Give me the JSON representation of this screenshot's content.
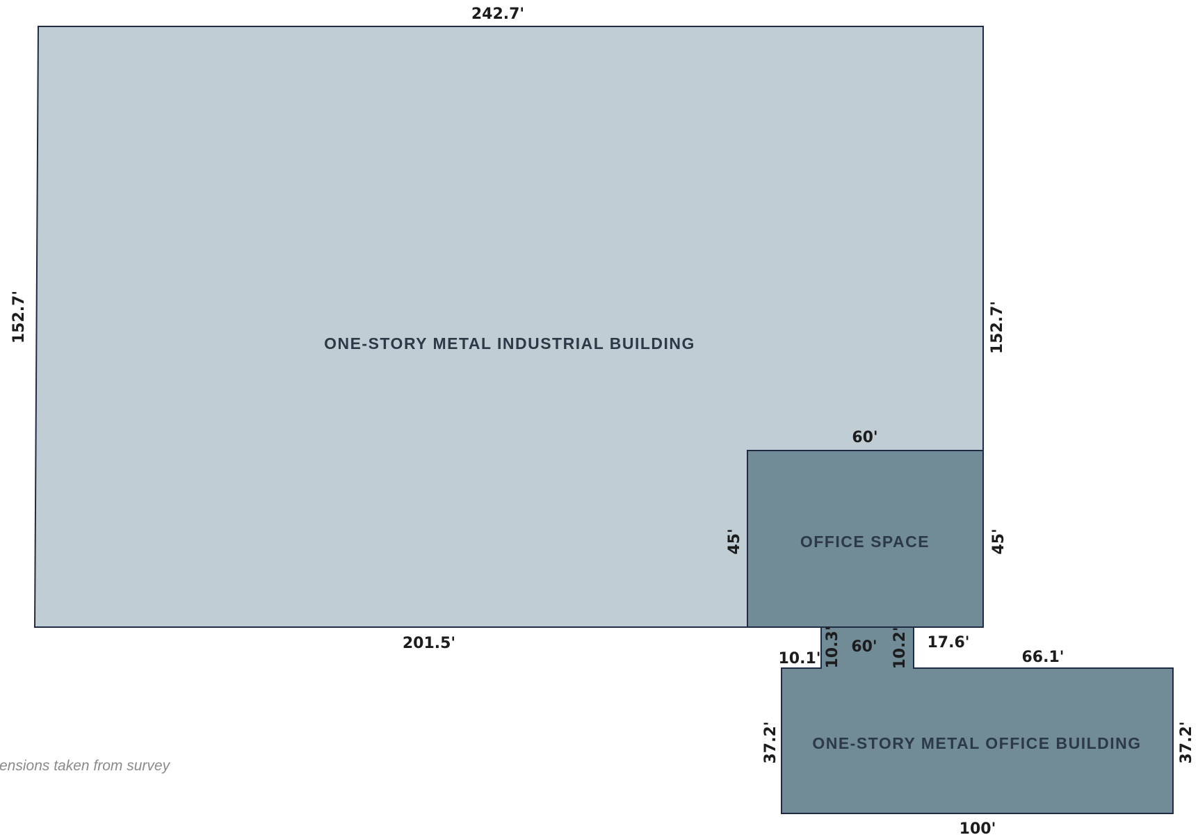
{
  "colors": {
    "industrial_fill": "#c1cdd4",
    "office_fill": "#718b97",
    "outline": "#1f2a44",
    "label_text": "#2c3a47",
    "dimension_text": "#1c1c1c",
    "note_text": "#8a8a8a"
  },
  "buildings": {
    "industrial": {
      "label": "ONE-STORY METAL INDUSTRIAL BUILDING"
    },
    "office_space": {
      "label": "OFFICE SPACE"
    },
    "office_building": {
      "label": "ONE-STORY METAL OFFICE BUILDING"
    }
  },
  "dimensions": {
    "industrial_top": "242.7'",
    "industrial_left": "152.7'",
    "industrial_right": "152.7'",
    "industrial_bottom": "201.5'",
    "office_space_top": "60'",
    "office_space_left": "45'",
    "office_space_right": "45'",
    "connector_left_height": "10.3'",
    "connector_width": "60'",
    "connector_right_height": "10.2'",
    "office_bldg_top_left": "10.1'",
    "office_bldg_step": "17.6'",
    "office_bldg_top_right": "66.1'",
    "office_bldg_left": "37.2'",
    "office_bldg_right": "37.2'",
    "office_bldg_bottom": "100'"
  },
  "footnote": "ensions taken from survey"
}
